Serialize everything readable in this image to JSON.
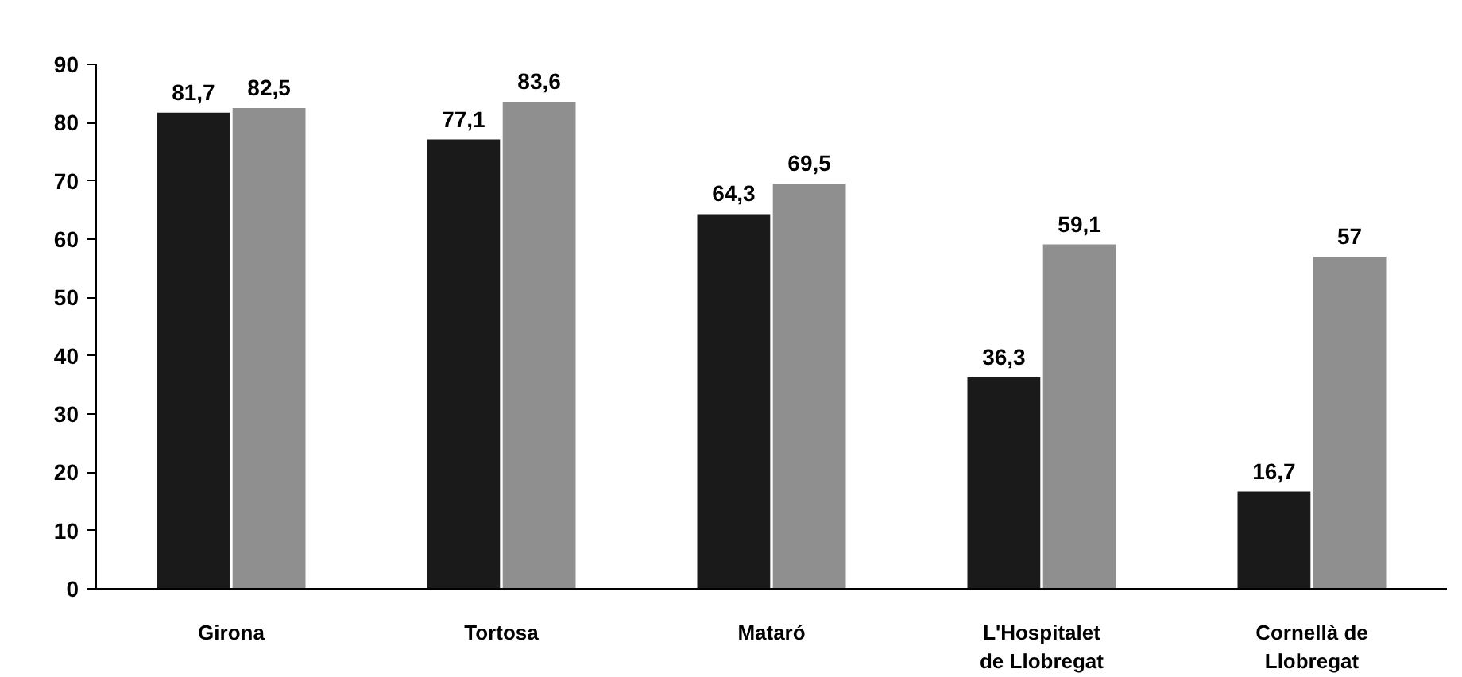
{
  "chart_data": {
    "type": "bar",
    "categories": [
      "Girona",
      "Tortosa",
      "Mataró",
      "L'Hospitalet\nde Llobregat",
      "Cornellà de\nLlobregat"
    ],
    "series": [
      {
        "color": "#1a1a1a",
        "values": [
          81.7,
          77.1,
          64.3,
          36.3,
          16.7
        ],
        "value_labels": [
          "81,7",
          "77,1",
          "64,3",
          "36,3",
          "16,7"
        ]
      },
      {
        "color": "#8f8f8f",
        "values": [
          82.5,
          83.6,
          69.5,
          59.1,
          57
        ],
        "value_labels": [
          "82,5",
          "83,6",
          "69,5",
          "59,1",
          "57"
        ]
      }
    ],
    "ylim": [
      0,
      90
    ],
    "yticks": [
      0,
      10,
      20,
      30,
      40,
      50,
      60,
      70,
      80,
      90
    ],
    "grid": false
  }
}
